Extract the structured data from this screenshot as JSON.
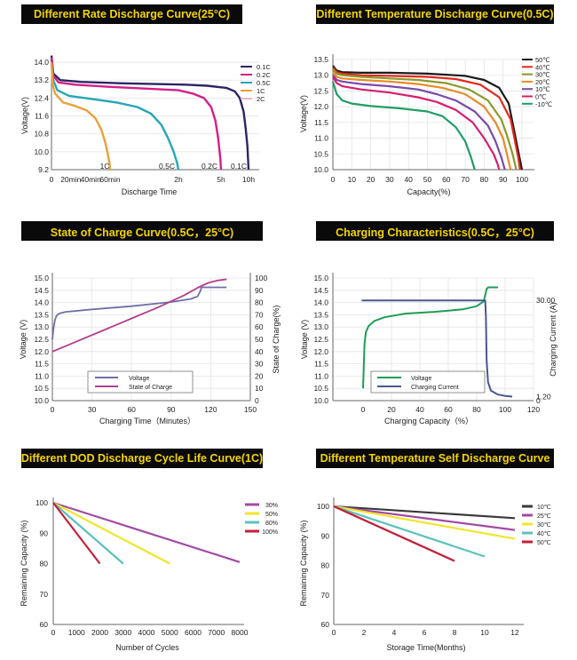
{
  "chart_data": [
    {
      "type": "line",
      "title": "Different Rate Discharge Curve(25°C)",
      "xlabel": "Discharge Time",
      "ylabel": "Voltage(V)",
      "ylim": [
        9.2,
        14.4
      ],
      "yticks": [
        "14.0",
        "13.2",
        "12.4",
        "11.6",
        "10.8",
        "10.0",
        "9.2"
      ],
      "xlim": [
        0,
        10
      ],
      "xticks": [
        {
          "v": 0,
          "label": "0"
        },
        {
          "v": 0.33,
          "label": "20min"
        },
        {
          "v": 0.67,
          "label": "40min"
        },
        {
          "v": 1,
          "label": "60min"
        },
        {
          "v": 2,
          "label": "2h"
        },
        {
          "v": 5,
          "label": "5h"
        },
        {
          "v": 10,
          "label": "10h"
        }
      ],
      "axis_scale": "nonlinear",
      "annotations": [
        "1C",
        "0.5C",
        "0.2C",
        "0.1C"
      ],
      "legend_position": "top-right",
      "series": [
        {
          "name": "0.1C",
          "color": "#2d2563",
          "x": [
            0,
            0.03,
            0.15,
            0.5,
            1.2,
            2.5,
            4,
            6,
            7.5,
            8.4,
            9.1,
            9.5,
            9.8,
            10
          ],
          "y": [
            14.3,
            13.5,
            13.2,
            13.12,
            13.06,
            13.0,
            12.95,
            12.85,
            12.7,
            12.4,
            11.8,
            11.0,
            10.2,
            9.2
          ]
        },
        {
          "name": "0.2C",
          "color": "#d31f8a",
          "x": [
            0,
            0.03,
            0.12,
            0.4,
            1,
            2,
            3,
            3.8,
            4.3,
            4.6,
            4.8,
            4.95,
            5
          ],
          "y": [
            14.2,
            13.4,
            13.1,
            13.0,
            12.9,
            12.75,
            12.6,
            12.4,
            12.0,
            11.4,
            10.6,
            9.7,
            9.2
          ]
        },
        {
          "name": "0.5C",
          "color": "#25a6b8",
          "x": [
            0,
            0.03,
            0.1,
            0.3,
            0.7,
            1.1,
            1.4,
            1.6,
            1.75,
            1.85,
            1.93,
            1.98,
            2
          ],
          "y": [
            13.9,
            13.2,
            12.75,
            12.5,
            12.35,
            12.2,
            12.0,
            11.7,
            11.2,
            10.6,
            10.0,
            9.5,
            9.2
          ]
        },
        {
          "name": "1C",
          "color": "#e8a13a",
          "x": [
            0,
            0.02,
            0.06,
            0.2,
            0.4,
            0.6,
            0.75,
            0.85,
            0.92,
            0.96,
            0.99,
            1
          ],
          "y": [
            14.0,
            13.0,
            12.6,
            12.2,
            12.05,
            11.85,
            11.5,
            11.0,
            10.4,
            9.9,
            9.5,
            9.2
          ]
        },
        {
          "name": "2C",
          "color": "#f0b3cc",
          "x": [],
          "y": []
        }
      ]
    },
    {
      "type": "line",
      "title": "Different Temperature Discharge Curve(0.5C)",
      "xlabel": "Capacity(%)",
      "ylabel": "Voltage(V)",
      "xlim": [
        0,
        105
      ],
      "xticks": [
        0,
        10,
        20,
        30,
        40,
        50,
        60,
        70,
        80,
        90,
        100
      ],
      "ylim": [
        10.0,
        13.5
      ],
      "yticks": [
        "13.5",
        "13.0",
        "12.5",
        "12.0",
        "11.5",
        "11.0",
        "10.5",
        "10.0"
      ],
      "legend_position": "top-right",
      "series": [
        {
          "name": "50℃",
          "color": "#1b1b1b",
          "x": [
            0,
            2,
            5,
            15,
            30,
            50,
            70,
            80,
            88,
            93,
            96,
            98,
            100
          ],
          "y": [
            13.3,
            13.15,
            13.1,
            13.08,
            13.08,
            13.05,
            12.98,
            12.85,
            12.6,
            12.1,
            11.2,
            10.6,
            10.0
          ]
        },
        {
          "name": "40℃",
          "color": "#e5281f",
          "x": [
            0,
            2,
            5,
            15,
            30,
            50,
            65,
            78,
            88,
            94,
            96,
            98,
            99
          ],
          "y": [
            13.25,
            13.1,
            13.05,
            13.0,
            12.98,
            12.95,
            12.88,
            12.7,
            12.3,
            11.6,
            11.0,
            10.4,
            10.0
          ]
        },
        {
          "name": "30℃",
          "color": "#8a9a2a",
          "x": [
            0,
            2,
            5,
            15,
            30,
            45,
            60,
            72,
            82,
            89,
            92,
            95,
            97
          ],
          "y": [
            13.2,
            13.05,
            13.0,
            12.95,
            12.9,
            12.85,
            12.75,
            12.55,
            12.2,
            11.6,
            11.1,
            10.5,
            10.0
          ]
        },
        {
          "name": "20℃",
          "color": "#e98a25",
          "x": [
            0,
            2,
            5,
            15,
            30,
            45,
            58,
            70,
            80,
            86,
            90,
            92,
            94
          ],
          "y": [
            13.1,
            12.95,
            12.9,
            12.85,
            12.8,
            12.72,
            12.6,
            12.4,
            12.0,
            11.5,
            11.0,
            10.5,
            10.0
          ]
        },
        {
          "name": "10℃",
          "color": "#7a4aa8",
          "x": [
            0,
            2,
            5,
            15,
            30,
            45,
            55,
            65,
            75,
            82,
            86,
            89,
            91
          ],
          "y": [
            13.0,
            12.85,
            12.8,
            12.72,
            12.65,
            12.55,
            12.4,
            12.2,
            11.85,
            11.4,
            10.9,
            10.4,
            10.0
          ]
        },
        {
          "name": "0℃",
          "color": "#d61f6e",
          "x": [
            0,
            2,
            5,
            15,
            30,
            45,
            55,
            65,
            74,
            80,
            85,
            87,
            88
          ],
          "y": [
            12.95,
            12.75,
            12.65,
            12.55,
            12.45,
            12.3,
            12.15,
            11.9,
            11.5,
            11.0,
            10.5,
            10.2,
            10.0
          ]
        },
        {
          "name": "-10℃",
          "color": "#1e9e66",
          "x": [
            0,
            2,
            5,
            10,
            20,
            35,
            50,
            58,
            65,
            70,
            73,
            75
          ],
          "y": [
            12.8,
            12.4,
            12.2,
            12.1,
            12.02,
            11.95,
            11.85,
            11.7,
            11.35,
            10.9,
            10.4,
            10.0
          ]
        }
      ]
    },
    {
      "type": "line",
      "title": "State of Charge Curve(0.5C，25°C)",
      "xlabel": "Charging Time（Minutes）",
      "ylabel": "Voltage (V)",
      "ylabel_right": "State of Charge(%)",
      "xlim": [
        0,
        150
      ],
      "xticks": [
        0,
        30,
        60,
        90,
        120,
        150
      ],
      "ylim": [
        10.0,
        15.0
      ],
      "yticks": [
        "15.0",
        "14.5",
        "14.0",
        "13.5",
        "13.0",
        "12.5",
        "12.0",
        "11.5",
        "11.0",
        "10.5",
        "10.0"
      ],
      "ylim_right": [
        0,
        100
      ],
      "yticks_right": [
        "100",
        "90",
        "80",
        "70",
        "60",
        "50",
        "40",
        "30",
        "20",
        "10",
        "0"
      ],
      "legend_position": "bottom-left",
      "series": [
        {
          "name": "Voltage",
          "color": "#6f6fa6",
          "axis": "left",
          "x": [
            0,
            1,
            2,
            3,
            5,
            10,
            30,
            60,
            90,
            105,
            110,
            112,
            113,
            120,
            132
          ],
          "y": [
            12.5,
            13.0,
            13.3,
            13.45,
            13.55,
            13.62,
            13.72,
            13.85,
            14.02,
            14.15,
            14.25,
            14.45,
            14.62,
            14.62,
            14.62
          ]
        },
        {
          "name": "State of Charge",
          "color": "#b23f8e",
          "axis": "right",
          "x": [
            0,
            20,
            40,
            60,
            80,
            100,
            110,
            118,
            125,
            132
          ],
          "y": [
            40,
            49,
            58,
            67,
            76,
            86,
            92,
            96,
            98,
            99
          ]
        }
      ]
    },
    {
      "type": "line",
      "title": "Charging Characteristics(0.5C，25°C)",
      "xlabel": "Charging Capacity（%）",
      "ylabel": "Voltage (V)",
      "ylabel_right": "Charging Current (A)",
      "xlim": [
        0,
        120
      ],
      "xticks": [
        0,
        20,
        40,
        60,
        80,
        100,
        120
      ],
      "ylim": [
        10.0,
        15.0
      ],
      "yticks": [
        "15.0",
        "14.5",
        "14.0",
        "13.5",
        "13.0",
        "12.5",
        "12.0",
        "11.5",
        "11.0",
        "10.5",
        "10.0"
      ],
      "right_ticks": [
        "30.00",
        "1.20",
        "0"
      ],
      "legend_position": "bottom-left",
      "series": [
        {
          "name": "Voltage",
          "color": "#1e9e55",
          "x": [
            0,
            0.5,
            1,
            2,
            4,
            8,
            15,
            30,
            50,
            70,
            80,
            85,
            86,
            87,
            88,
            95
          ],
          "y": [
            10.5,
            11.4,
            12.3,
            12.8,
            13.05,
            13.25,
            13.4,
            13.55,
            13.62,
            13.72,
            13.85,
            14.05,
            14.3,
            14.55,
            14.62,
            14.62
          ]
        },
        {
          "name": "Charging Current",
          "color": "#4a5690",
          "x": [
            -1,
            85,
            86,
            86.5,
            87,
            88,
            90,
            95,
            100,
            105
          ],
          "y": [
            30.0,
            30.0,
            30.0,
            25,
            12,
            5.5,
            3,
            1.8,
            1.4,
            1.2
          ]
        }
      ]
    },
    {
      "type": "line",
      "title": "Different DOD Discharge Cycle Life Curve(1C)",
      "xlabel": "Number of Cycles",
      "ylabel": "Remaining Capacity (%)",
      "xlim": [
        0,
        8000
      ],
      "xticks": [
        0,
        1000,
        2000,
        3000,
        4000,
        5000,
        6000,
        7000,
        8000
      ],
      "ylim": [
        60,
        100
      ],
      "yticks": [
        100,
        90,
        80,
        70,
        60
      ],
      "legend_position": "top-right",
      "series": [
        {
          "name": "30%",
          "color": "#a24ba6",
          "x": [
            0,
            8000
          ],
          "y": [
            100,
            80.5
          ]
        },
        {
          "name": "50%",
          "color": "#f2e52a",
          "x": [
            0,
            5000
          ],
          "y": [
            100,
            80
          ]
        },
        {
          "name": "80%",
          "color": "#5cc2bc",
          "x": [
            0,
            3000
          ],
          "y": [
            100,
            80
          ]
        },
        {
          "name": "100%",
          "color": "#c2203a",
          "x": [
            0,
            2000
          ],
          "y": [
            100,
            80
          ]
        }
      ]
    },
    {
      "type": "line",
      "title": "Different Temperature Self Discharge Curve",
      "xlabel": "Storage Time(Months)",
      "ylabel": "Remaining Capacity (%)",
      "xlim": [
        0,
        12
      ],
      "xticks": [
        0,
        2,
        4,
        6,
        8,
        10,
        12
      ],
      "ylim": [
        60,
        100
      ],
      "yticks": [
        100,
        90,
        80,
        70,
        60
      ],
      "legend_position": "top-right",
      "series": [
        {
          "name": "10℃",
          "color": "#3a3a3a",
          "x": [
            0,
            12
          ],
          "y": [
            100,
            96
          ]
        },
        {
          "name": "25℃",
          "color": "#a24ba6",
          "x": [
            0,
            12
          ],
          "y": [
            100,
            92
          ]
        },
        {
          "name": "30℃",
          "color": "#f2e52a",
          "x": [
            0,
            12
          ],
          "y": [
            100,
            89
          ]
        },
        {
          "name": "40℃",
          "color": "#5cc2bc",
          "x": [
            0,
            10
          ],
          "y": [
            100,
            83
          ]
        },
        {
          "name": "50℃",
          "color": "#c2203a",
          "x": [
            0,
            8
          ],
          "y": [
            100,
            81.5
          ]
        }
      ]
    }
  ]
}
